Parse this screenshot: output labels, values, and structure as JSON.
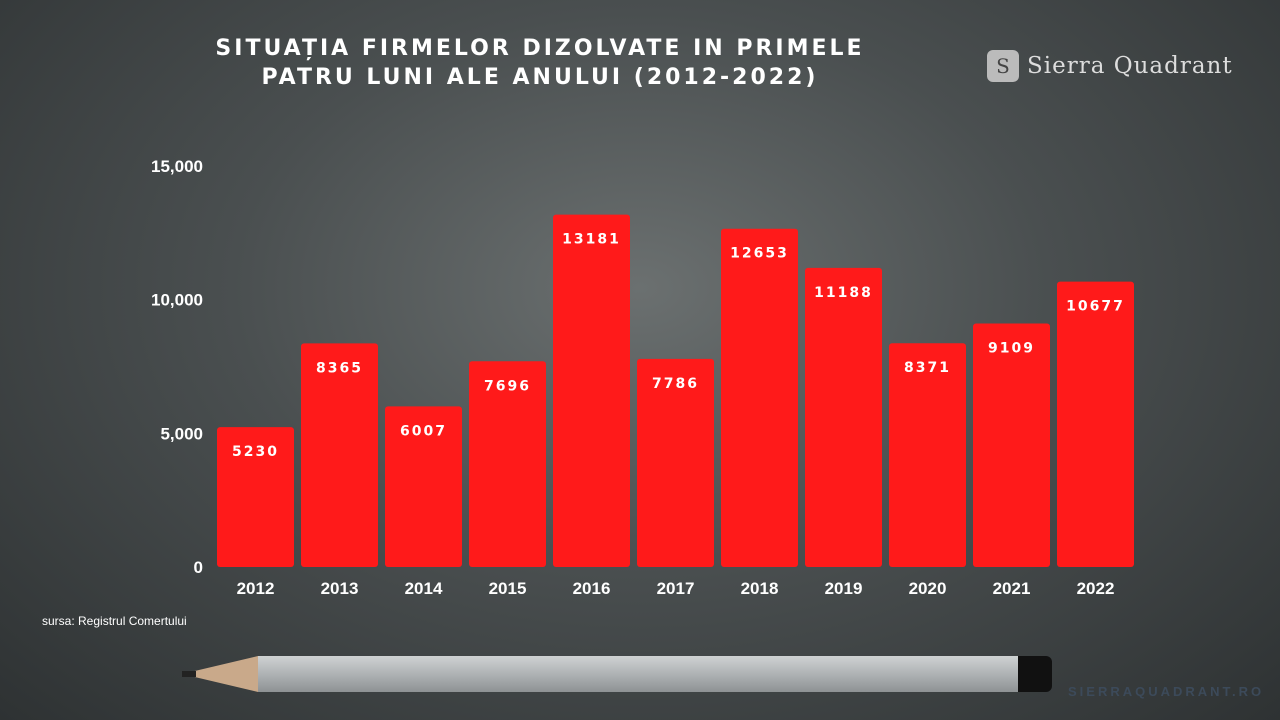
{
  "brand": {
    "name": "Sierra Quadrant",
    "logo_letter": "S",
    "website": "SIERRAQUADRANT.RO"
  },
  "source": "sursa: Registrul Comertului",
  "chart_data": {
    "type": "bar",
    "title_line1": "SITUAȚIA FIRMELOR DIZOLVATE IN PRIMELE",
    "title_line2": "PATRU LUNI ALE ANULUI (2012-2022)",
    "categories": [
      "2012",
      "2013",
      "2014",
      "2015",
      "2016",
      "2017",
      "2018",
      "2019",
      "2020",
      "2021",
      "2022"
    ],
    "values": [
      5230,
      8365,
      6007,
      7696,
      13181,
      7786,
      12653,
      11188,
      8371,
      9109,
      10677
    ],
    "ylim": [
      0,
      15000
    ],
    "yticks": [
      0,
      5000,
      10000,
      15000
    ],
    "ytick_labels": [
      "0",
      "5,000",
      "10,000",
      "15,000"
    ],
    "grid": false,
    "bar_color": "#ff1a1a",
    "data_labels": true
  }
}
